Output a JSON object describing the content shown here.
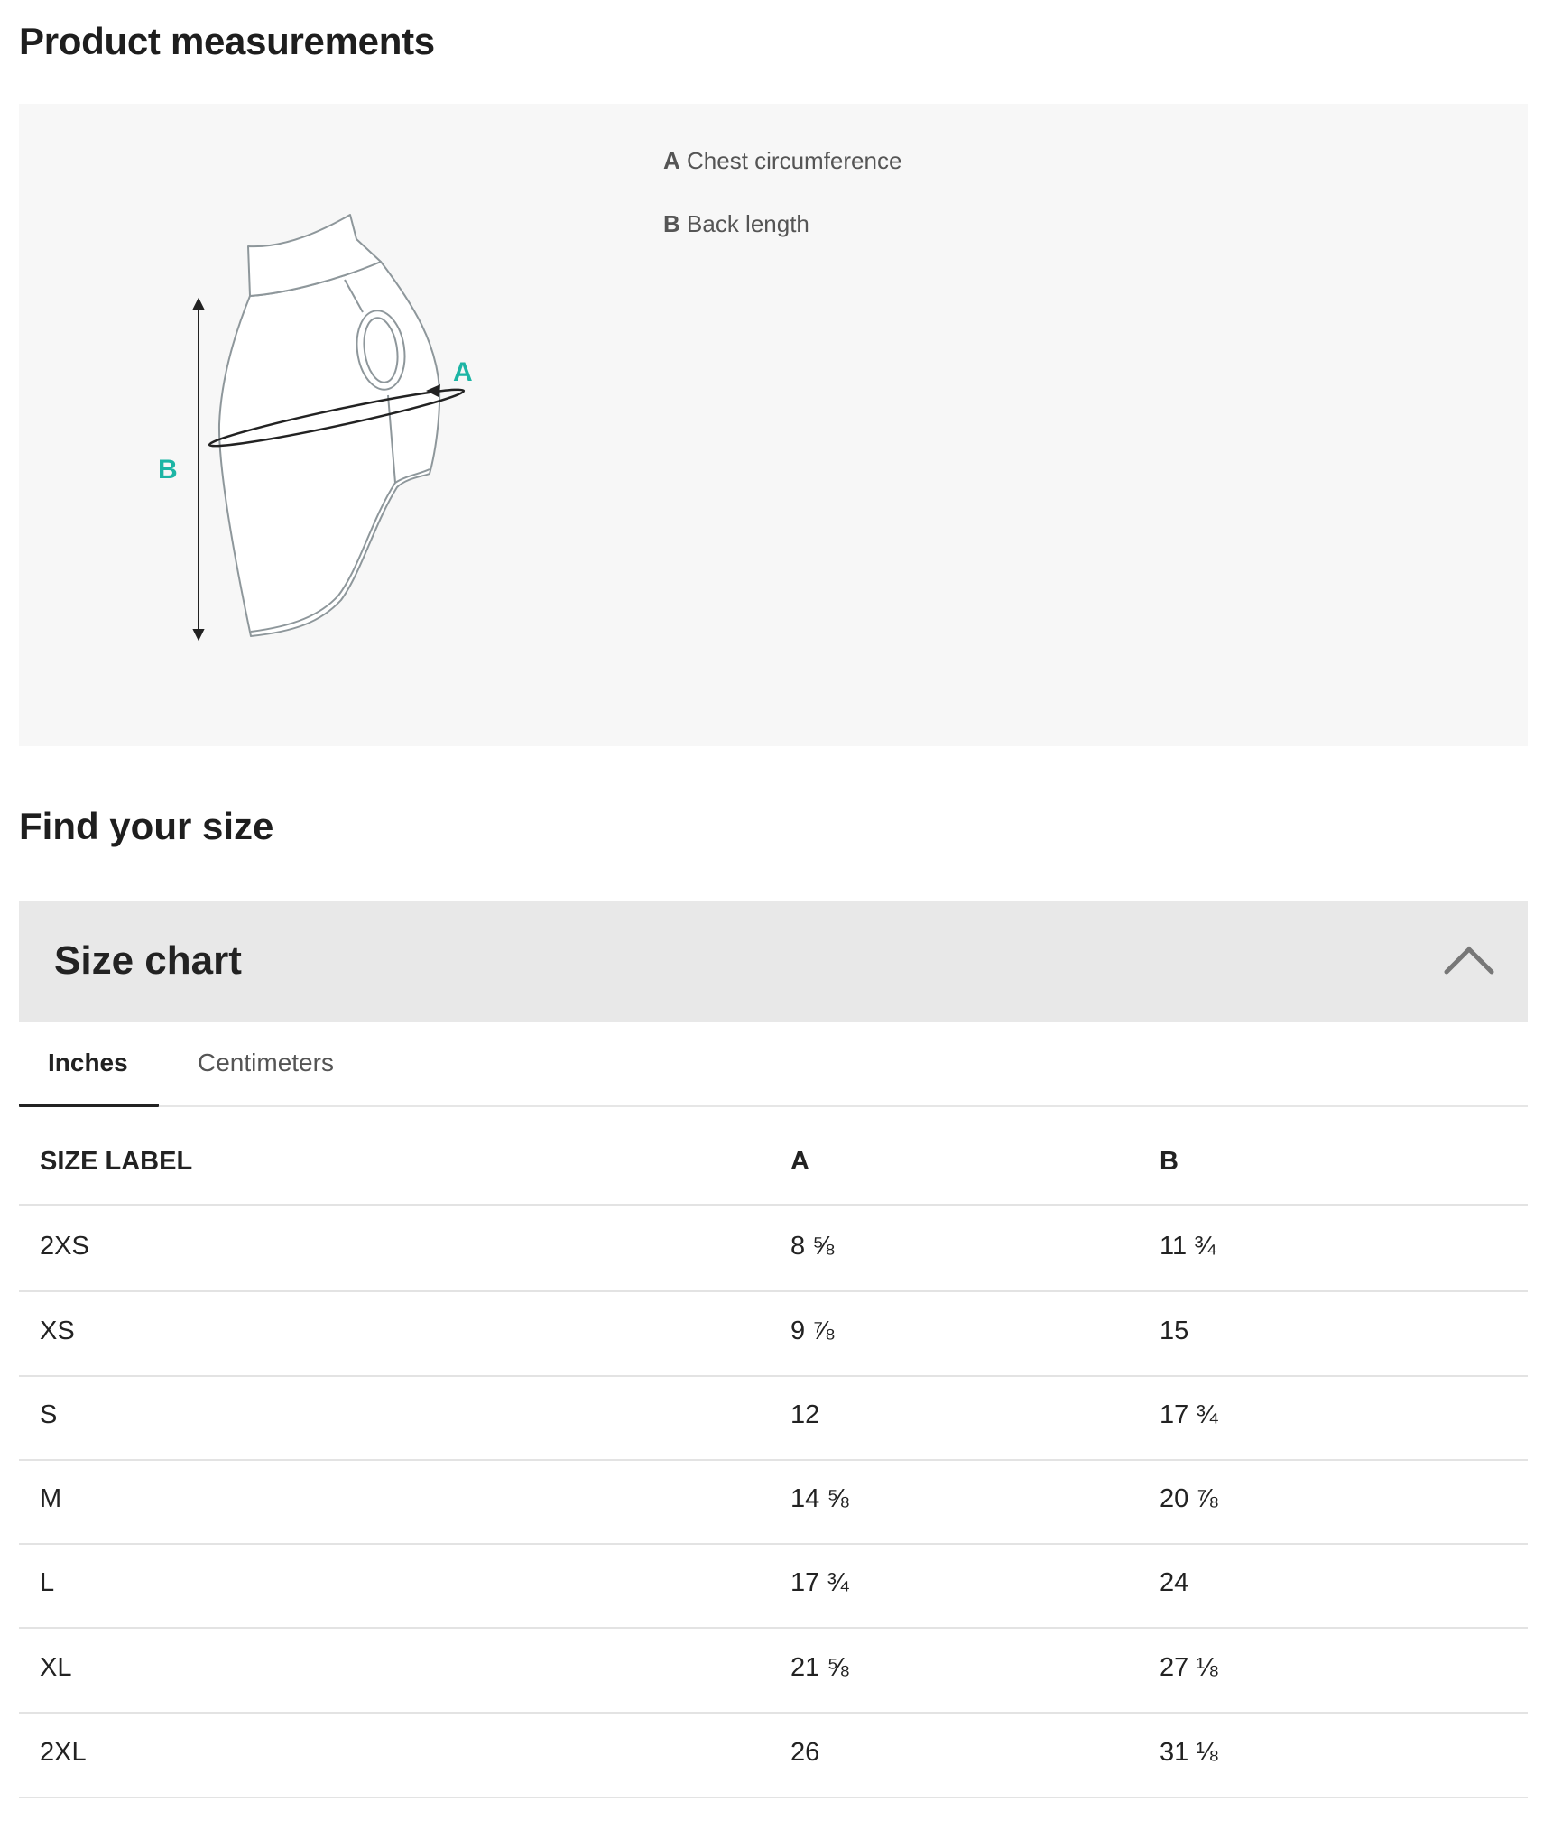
{
  "page": {
    "title": "Product measurements",
    "find_title": "Find your size"
  },
  "measurements": {
    "diagram_labels": {
      "a": "A",
      "b": "B"
    },
    "legend": [
      {
        "key": "A",
        "label": "Chest circumference"
      },
      {
        "key": "B",
        "label": "Back length"
      }
    ],
    "accent_color": "#1db5a5"
  },
  "size_chart": {
    "title": "Size chart",
    "expanded": true,
    "toggle_icon": "chevron-up-icon",
    "tabs": [
      {
        "label": "Inches",
        "active": true
      },
      {
        "label": "Centimeters",
        "active": false
      }
    ],
    "columns": [
      "SIZE LABEL",
      "A",
      "B"
    ],
    "rows": [
      [
        "2XS",
        "8 ⅝",
        "11 ¾"
      ],
      [
        "XS",
        "9 ⅞",
        "15"
      ],
      [
        "S",
        "12",
        "17 ¾"
      ],
      [
        "M",
        "14 ⅝",
        "20 ⅞"
      ],
      [
        "L",
        "17 ¾",
        "24"
      ],
      [
        "XL",
        "21 ⅝",
        "27 ⅛"
      ],
      [
        "2XL",
        "26",
        "31 ⅛"
      ]
    ]
  }
}
